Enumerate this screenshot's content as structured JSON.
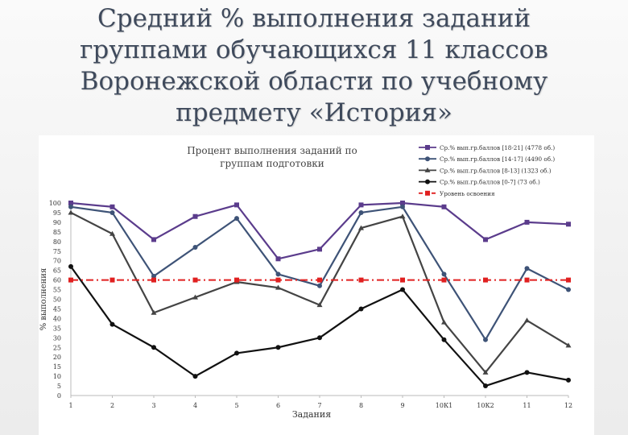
{
  "slide": {
    "title": "Средний % выполнения заданий группами обучающихся 11 классов Воронежской области по учебному предмету «История»"
  },
  "chart_data": {
    "type": "line",
    "title": "Процент выполнения заданий по группам подготовки",
    "xlabel": "Задания",
    "ylabel": "% выполнения",
    "categories": [
      "1",
      "2",
      "3",
      "4",
      "5",
      "6",
      "7",
      "8",
      "9",
      "10К1",
      "10К2",
      "11",
      "12"
    ],
    "ylim": [
      0,
      100
    ],
    "ytick_step": 5,
    "grid": false,
    "legend_position": "top-right",
    "series": [
      {
        "name": "Ср.% вып.гр.баллов [18-21] (4778 об.)",
        "color": "#5b3c8c",
        "marker": "square",
        "values": [
          100,
          98,
          81,
          93,
          99,
          71,
          76,
          99,
          100,
          98,
          81,
          90,
          89
        ]
      },
      {
        "name": "Ср.% вып.гр.баллов [14-17] (4490 об.)",
        "color": "#3e5377",
        "marker": "circle",
        "values": [
          98,
          95,
          62,
          77,
          92,
          63,
          57,
          95,
          98,
          63,
          29,
          66,
          55
        ]
      },
      {
        "name": "Ср.% вып.гр.баллов [8-13] (1323 об.)",
        "color": "#444444",
        "marker": "triangle",
        "values": [
          95,
          84,
          43,
          51,
          59,
          56,
          47,
          87,
          93,
          38,
          12,
          39,
          26
        ]
      },
      {
        "name": "Ср.% вып.гр.баллов [0-7] (73 об.)",
        "color": "#111111",
        "marker": "circle",
        "values": [
          67,
          37,
          25,
          10,
          22,
          25,
          30,
          45,
          55,
          29,
          5,
          12,
          8
        ]
      },
      {
        "name": "Уровень освоения",
        "color": "#e02020",
        "marker": "square",
        "dashed": true,
        "values": [
          60,
          60,
          60,
          60,
          60,
          60,
          60,
          60,
          60,
          60,
          60,
          60,
          60
        ]
      }
    ]
  }
}
